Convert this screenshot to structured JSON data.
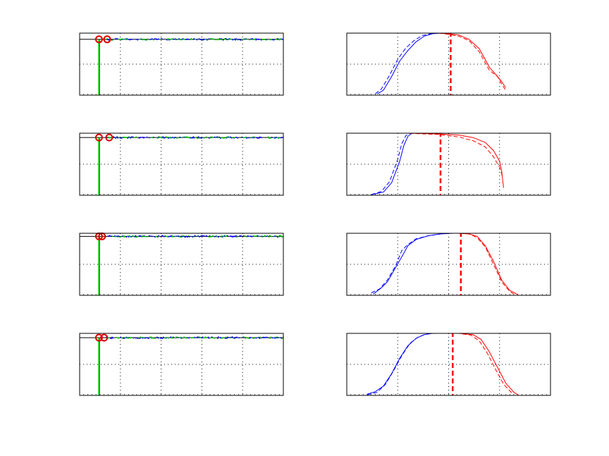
{
  "colors": {
    "blue": "#0000ff",
    "red": "#ff0000",
    "green": "#00cc00",
    "marker": "#dd0000",
    "axis": "#000000",
    "grid": "#000000"
  },
  "chart_data": [
    {
      "type": "scatter",
      "panel": "left-1",
      "xlim": [
        0,
        100
      ],
      "ylim": [
        0,
        1
      ],
      "grid": true,
      "xgrid": [
        20,
        40,
        60,
        80
      ],
      "ygrid": [
        0.5
      ],
      "spike_x": 9.5,
      "hline_y": 0.9,
      "markers": [
        {
          "x": 9.5,
          "y": 0.9
        },
        {
          "x": 13.5,
          "y": 0.9
        }
      ],
      "scatter_band": {
        "x_start": 9.5,
        "x_end": 100,
        "y": 0.9
      },
      "title": "",
      "xlabel": "",
      "ylabel": ""
    },
    {
      "type": "scatter",
      "panel": "left-2",
      "xlim": [
        0,
        100
      ],
      "ylim": [
        0,
        1
      ],
      "grid": true,
      "xgrid": [
        20,
        40,
        60,
        80
      ],
      "ygrid": [
        0.5
      ],
      "spike_x": 9.5,
      "hline_y": 0.93,
      "markers": [
        {
          "x": 9.5,
          "y": 0.93
        },
        {
          "x": 14.5,
          "y": 0.93
        }
      ],
      "scatter_band": {
        "x_start": 9.5,
        "x_end": 100,
        "y": 0.93
      },
      "title": "",
      "xlabel": "",
      "ylabel": ""
    },
    {
      "type": "scatter",
      "panel": "left-3",
      "xlim": [
        0,
        100
      ],
      "ylim": [
        0,
        1
      ],
      "grid": true,
      "xgrid": [
        20,
        40,
        60,
        80
      ],
      "ygrid": [
        0.5
      ],
      "spike_x": 9.5,
      "hline_y": 0.95,
      "markers": [
        {
          "x": 9.5,
          "y": 0.95
        },
        {
          "x": 11.0,
          "y": 0.95
        }
      ],
      "scatter_band": {
        "x_start": 9.5,
        "x_end": 100,
        "y": 0.95
      },
      "title": "",
      "xlabel": "",
      "ylabel": ""
    },
    {
      "type": "scatter",
      "panel": "left-4",
      "xlim": [
        0,
        100
      ],
      "ylim": [
        0,
        1
      ],
      "grid": true,
      "xgrid": [
        20,
        40,
        60,
        80
      ],
      "ygrid": [
        0.5
      ],
      "spike_x": 9.5,
      "hline_y": 0.93,
      "markers": [
        {
          "x": 9.5,
          "y": 0.93
        },
        {
          "x": 12.0,
          "y": 0.93
        }
      ],
      "scatter_band": {
        "x_start": 9.5,
        "x_end": 100,
        "y": 0.93
      },
      "title": "",
      "xlabel": "",
      "ylabel": ""
    },
    {
      "type": "line",
      "panel": "right-1",
      "xlim": [
        0,
        100
      ],
      "ylim": [
        0,
        1
      ],
      "grid": true,
      "xgrid": [
        25,
        50,
        75
      ],
      "ygrid": [
        0.5
      ],
      "threshold_x": 51,
      "series": [
        {
          "color": "blue",
          "style": "solid",
          "x": [
            15,
            18,
            22,
            26,
            30,
            34,
            38,
            42,
            46,
            50,
            52,
            54,
            56,
            60,
            70,
            80,
            90
          ],
          "y": [
            0.02,
            0.08,
            0.3,
            0.55,
            0.72,
            0.86,
            0.95,
            0.99,
            1.0,
            1.0,
            1.0,
            1.0,
            1.0,
            1.0,
            1.0,
            1.0,
            1.0
          ]
        },
        {
          "color": "blue",
          "style": "dashed",
          "x": [
            14,
            17,
            21,
            25,
            29,
            33,
            37,
            41,
            45,
            49,
            52,
            56,
            62,
            72,
            82,
            90
          ],
          "y": [
            0.02,
            0.1,
            0.32,
            0.58,
            0.76,
            0.88,
            0.96,
            0.99,
            1.0,
            1.0,
            1.0,
            1.0,
            1.0,
            1.0,
            1.0,
            1.0
          ]
        },
        {
          "color": "red",
          "style": "solid",
          "x": [
            14,
            30,
            45,
            50,
            55,
            60,
            65,
            70,
            74,
            76,
            78
          ],
          "y": [
            1.0,
            1.0,
            1.0,
            0.99,
            0.97,
            0.9,
            0.75,
            0.45,
            0.3,
            0.22,
            0.12
          ]
        },
        {
          "color": "red",
          "style": "dashed",
          "x": [
            14,
            30,
            45,
            50,
            55,
            60,
            65,
            70,
            74,
            76,
            78
          ],
          "y": [
            1.0,
            1.0,
            1.0,
            0.98,
            0.95,
            0.88,
            0.7,
            0.4,
            0.3,
            0.18,
            0.08
          ]
        }
      ],
      "title": "",
      "xlabel": "",
      "ylabel": ""
    },
    {
      "type": "line",
      "panel": "right-2",
      "xlim": [
        0,
        100
      ],
      "ylim": [
        0,
        1
      ],
      "grid": true,
      "xgrid": [
        25,
        50,
        75
      ],
      "ygrid": [
        0.5
      ],
      "threshold_x": 46,
      "series": [
        {
          "color": "blue",
          "style": "solid",
          "x": [
            12,
            18,
            22,
            26,
            28,
            30,
            32,
            34,
            40,
            50,
            60,
            70,
            80,
            90
          ],
          "y": [
            0.01,
            0.05,
            0.2,
            0.55,
            0.8,
            0.95,
            1.0,
            1.0,
            1.0,
            1.0,
            1.0,
            1.0,
            1.0,
            1.0
          ]
        },
        {
          "color": "blue",
          "style": "dashed",
          "x": [
            12,
            17,
            21,
            25,
            27,
            29,
            31,
            33,
            40,
            50,
            60,
            70,
            80,
            90
          ],
          "y": [
            0.01,
            0.06,
            0.22,
            0.58,
            0.83,
            0.96,
            1.0,
            1.0,
            1.0,
            1.0,
            1.0,
            1.0,
            1.0,
            1.0
          ]
        },
        {
          "color": "red",
          "style": "solid",
          "x": [
            12,
            30,
            45,
            55,
            62,
            68,
            72,
            75,
            76,
            76.5,
            77
          ],
          "y": [
            1.0,
            1.0,
            0.99,
            0.97,
            0.93,
            0.85,
            0.72,
            0.55,
            0.4,
            0.25,
            0.12
          ]
        },
        {
          "color": "red",
          "style": "dashed",
          "x": [
            12,
            30,
            45,
            55,
            62,
            68,
            72,
            75,
            76,
            76.5
          ],
          "y": [
            1.0,
            1.0,
            0.98,
            0.94,
            0.88,
            0.78,
            0.62,
            0.45,
            0.35,
            0.28
          ]
        }
      ],
      "title": "",
      "xlabel": "",
      "ylabel": ""
    },
    {
      "type": "line",
      "panel": "right-3",
      "xlim": [
        0,
        100
      ],
      "ylim": [
        0,
        1
      ],
      "grid": true,
      "xgrid": [
        25,
        50,
        75
      ],
      "ygrid": [
        0.5
      ],
      "threshold_x": 56,
      "series": [
        {
          "color": "blue",
          "style": "solid",
          "x": [
            13,
            17,
            20,
            24,
            28,
            30,
            34,
            40,
            46,
            52,
            58,
            64,
            72,
            80
          ],
          "y": [
            0.02,
            0.12,
            0.22,
            0.45,
            0.68,
            0.8,
            0.9,
            0.96,
            0.99,
            1.0,
            1.0,
            1.0,
            1.0,
            1.0
          ]
        },
        {
          "color": "blue",
          "style": "dashed",
          "x": [
            12,
            16,
            20,
            24,
            27,
            30,
            34,
            40,
            46,
            52,
            58,
            64,
            72,
            80
          ],
          "y": [
            0.04,
            0.1,
            0.25,
            0.48,
            0.72,
            0.82,
            0.91,
            0.96,
            0.99,
            1.0,
            1.0,
            1.0,
            1.0,
            1.0
          ]
        },
        {
          "color": "red",
          "style": "solid",
          "x": [
            12,
            30,
            45,
            55,
            60,
            64,
            68,
            72,
            76,
            80,
            84
          ],
          "y": [
            1.0,
            1.0,
            1.0,
            1.0,
            0.99,
            0.95,
            0.8,
            0.55,
            0.25,
            0.08,
            0.01
          ]
        },
        {
          "color": "red",
          "style": "dashed",
          "x": [
            12,
            30,
            45,
            55,
            60,
            64,
            68,
            72,
            76,
            80,
            82
          ],
          "y": [
            1.0,
            1.0,
            1.0,
            1.0,
            0.99,
            0.93,
            0.78,
            0.5,
            0.22,
            0.06,
            0.02
          ]
        }
      ],
      "title": "",
      "xlabel": "",
      "ylabel": ""
    },
    {
      "type": "line",
      "panel": "right-4",
      "xlim": [
        0,
        100
      ],
      "ylim": [
        0,
        1
      ],
      "grid": true,
      "xgrid": [
        25,
        50,
        75
      ],
      "ygrid": [
        0.5
      ],
      "threshold_x": 52,
      "series": [
        {
          "color": "blue",
          "style": "solid",
          "x": [
            10,
            14,
            18,
            22,
            26,
            30,
            34,
            38,
            42,
            50,
            60,
            70,
            80,
            90
          ],
          "y": [
            0.02,
            0.06,
            0.15,
            0.35,
            0.6,
            0.8,
            0.92,
            0.98,
            1.0,
            1.0,
            1.0,
            1.0,
            1.0,
            1.0
          ]
        },
        {
          "color": "blue",
          "style": "dashed",
          "x": [
            10,
            15,
            19,
            23,
            27,
            31,
            35,
            39,
            43,
            50,
            60,
            70,
            80,
            90
          ],
          "y": [
            0.01,
            0.05,
            0.18,
            0.4,
            0.64,
            0.84,
            0.94,
            0.99,
            1.0,
            1.0,
            1.0,
            1.0,
            1.0,
            1.0
          ]
        },
        {
          "color": "red",
          "style": "solid",
          "x": [
            10,
            30,
            45,
            55,
            62,
            66,
            70,
            74,
            78,
            82,
            84
          ],
          "y": [
            1.0,
            1.0,
            1.0,
            1.0,
            0.98,
            0.9,
            0.7,
            0.45,
            0.2,
            0.05,
            0.01
          ]
        },
        {
          "color": "red",
          "style": "dashed",
          "x": [
            10,
            30,
            45,
            55,
            61,
            65,
            69,
            73,
            77,
            81
          ],
          "y": [
            1.0,
            1.0,
            1.0,
            1.0,
            0.97,
            0.88,
            0.68,
            0.42,
            0.18,
            0.04
          ]
        }
      ],
      "title": "",
      "xlabel": "",
      "ylabel": ""
    }
  ]
}
